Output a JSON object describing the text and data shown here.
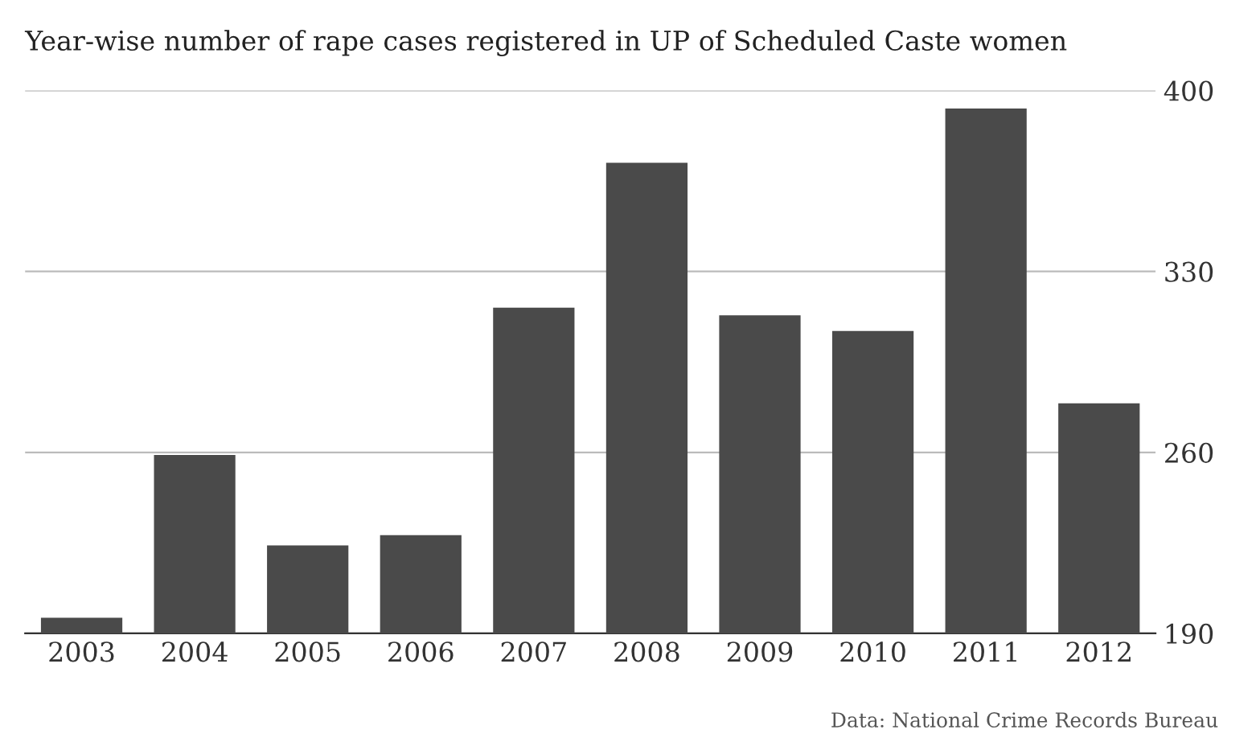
{
  "chart_data": {
    "type": "bar",
    "title": "Year-wise number of rape cases registered in UP of Scheduled Caste women",
    "categories": [
      "2003",
      "2004",
      "2005",
      "2006",
      "2007",
      "2008",
      "2009",
      "2010",
      "2011",
      "2012"
    ],
    "values": [
      196,
      259,
      224,
      228,
      316,
      372,
      313,
      307,
      393,
      279
    ],
    "color": "#4a4a4a",
    "ylim": [
      190,
      400
    ],
    "yticks": [
      190,
      260,
      330,
      400
    ],
    "grid": "y",
    "annotations": [
      "Data: National Crime Records Bureau"
    ]
  }
}
